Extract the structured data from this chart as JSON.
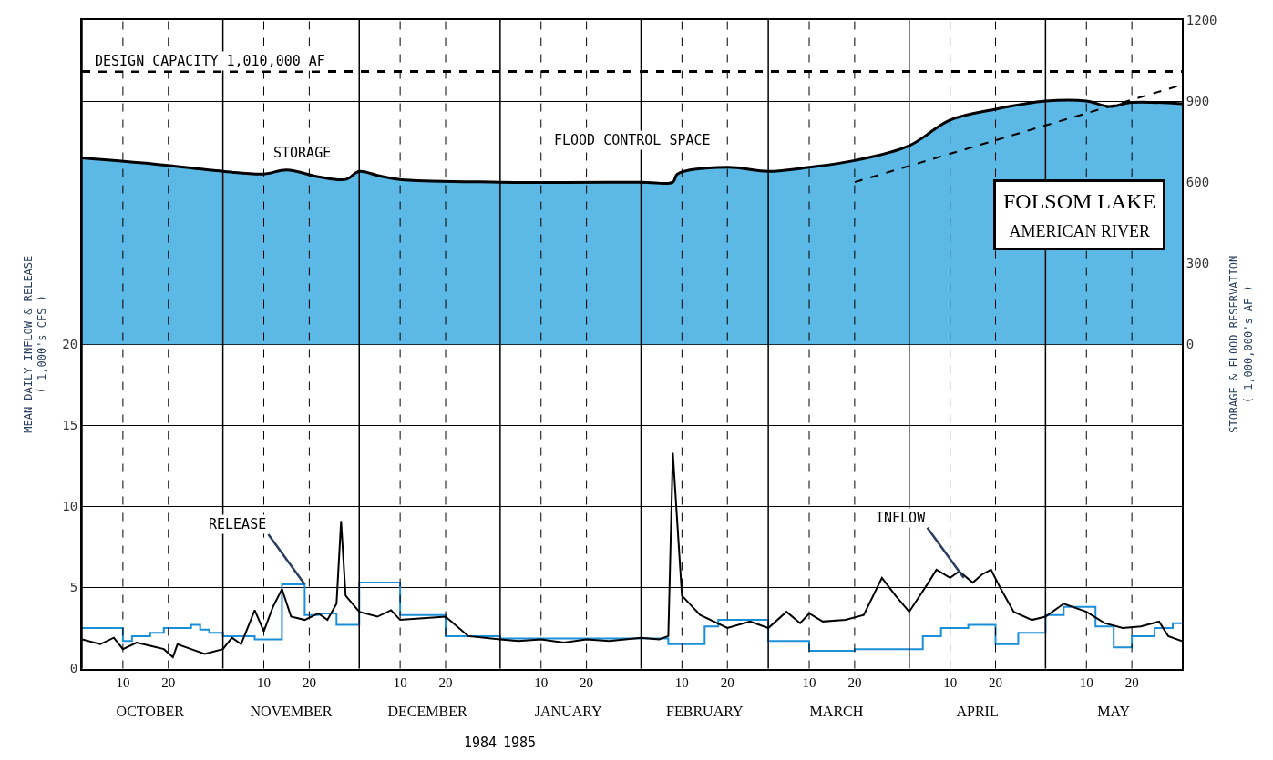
{
  "chart_data": {
    "type": "line",
    "title": "FOLSOM LAKE",
    "subtitle": "AMERICAN RIVER",
    "ylabel": "MEAN DAILY INFLOW & RELEASE\n( 1,000's CFS )",
    "y2label": "STORAGE & FLOOD RESERVATION\n( 1,000,000's AF )",
    "xlim": [
      "1984-10-01",
      "1985-05-31"
    ],
    "ylim": [
      0,
      40
    ],
    "yticks": [
      0,
      5,
      10,
      15,
      20
    ],
    "y2lim": [
      -1200,
      1200
    ],
    "y2ticks": [
      0,
      300,
      600,
      900,
      1200
    ],
    "xticks": [
      {
        "value": "1984-10-01",
        "label": null
      },
      {
        "value": "1984-10-10",
        "label": "10"
      },
      {
        "value": "1984-10-20",
        "label": "20"
      },
      {
        "value": "1984-11-01",
        "label": null
      },
      {
        "value": "1984-11-10",
        "label": "10"
      },
      {
        "value": "1984-11-20",
        "label": "20"
      },
      {
        "value": "1984-12-01",
        "label": null
      },
      {
        "value": "1984-12-10",
        "label": "10"
      },
      {
        "value": "1984-12-20",
        "label": "20"
      },
      {
        "value": "1985-01-01",
        "label": null
      },
      {
        "value": "1985-01-10",
        "label": "10"
      },
      {
        "value": "1985-01-20",
        "label": "20"
      },
      {
        "value": "1985-02-01",
        "label": null
      },
      {
        "value": "1985-02-10",
        "label": "10"
      },
      {
        "value": "1985-02-20",
        "label": "20"
      },
      {
        "value": "1985-03-01",
        "label": null
      },
      {
        "value": "1985-03-10",
        "label": "10"
      },
      {
        "value": "1985-03-20",
        "label": "20"
      },
      {
        "value": "1985-04-01",
        "label": null
      },
      {
        "value": "1985-04-10",
        "label": "10"
      },
      {
        "value": "1985-04-20",
        "label": "20"
      },
      {
        "value": "1985-05-01",
        "label": null
      },
      {
        "value": "1985-05-10",
        "label": "10"
      },
      {
        "value": "1985-05-20",
        "label": "20"
      },
      {
        "value": "1985-05-31",
        "label": null
      }
    ],
    "x2lim": [
      "1984-10-01",
      "1985-05-31"
    ],
    "x2ticks": [
      {
        "value": "1984-10-16",
        "label": "OCTOBER"
      },
      {
        "value": "1984-11-16",
        "label": "NOVEMBER"
      },
      {
        "value": "1984-12-16",
        "label": "DECEMBER"
      },
      {
        "value": "1985-01-16",
        "label": "JANUARY"
      },
      {
        "value": "1985-02-15",
        "label": "FEBRUARY"
      },
      {
        "value": "1985-03-16",
        "label": "MARCH"
      },
      {
        "value": "1985-04-16",
        "label": "APRIL"
      },
      {
        "value": "1985-05-16",
        "label": "MAY"
      }
    ],
    "grid": true,
    "series": [
      {
        "type": "area",
        "axis": "y2",
        "color": "#5cb8e4",
        "x": [
          "1984-10-01",
          "1984-10-15",
          "1984-11-01",
          "1984-11-10",
          "1984-11-15",
          "1984-11-22",
          "1984-11-28",
          "1984-12-01",
          "1984-12-05",
          "1984-12-10",
          "1985-01-01",
          "1985-02-01",
          "1985-02-08",
          "1985-02-09",
          "1985-02-20",
          "1985-03-01",
          "1985-03-10",
          "1985-03-20",
          "1985-04-01",
          "1985-04-10",
          "1985-04-20",
          "1985-05-01",
          "1985-05-10",
          "1985-05-15",
          "1985-05-20",
          "1985-05-31"
        ],
        "values": [
          690,
          670,
          640,
          630,
          645,
          620,
          610,
          640,
          625,
          610,
          600,
          600,
          600,
          630,
          655,
          640,
          655,
          680,
          735,
          830,
          870,
          900,
          900,
          880,
          895,
          890
        ]
      },
      {
        "type": "line",
        "axis": "y2",
        "line_style": "dashed",
        "color": "#000000",
        "x": [
          "1985-03-20",
          "1985-05-31"
        ],
        "values": [
          600,
          960
        ]
      },
      {
        "type": "step",
        "color": "#1b8fd8",
        "x": [
          "1984-10-01",
          "1984-10-10",
          "1984-10-12",
          "1984-10-16",
          "1984-10-19",
          "1984-10-25",
          "1984-10-27",
          "1984-10-29",
          "1984-11-01",
          "1984-11-08",
          "1984-11-14",
          "1984-11-19",
          "1984-11-22",
          "1984-11-26",
          "1984-12-01",
          "1984-12-10",
          "1984-12-20",
          "1985-01-01",
          "1985-02-07",
          "1985-02-15",
          "1985-02-18",
          "1985-03-01",
          "1985-03-10",
          "1985-03-20",
          "1985-04-04",
          "1985-04-08",
          "1985-04-14",
          "1985-04-20",
          "1985-04-25",
          "1985-05-01",
          "1985-05-05",
          "1985-05-12",
          "1985-05-16",
          "1985-05-20",
          "1985-05-25",
          "1985-05-29",
          "1985-05-31"
        ],
        "values": [
          2.5,
          1.7,
          2.0,
          2.2,
          2.5,
          2.7,
          2.4,
          2.2,
          2.0,
          1.8,
          5.2,
          3.3,
          3.4,
          2.7,
          5.3,
          3.3,
          2.0,
          1.85,
          1.5,
          2.6,
          3.0,
          1.7,
          1.1,
          1.2,
          2.0,
          2.5,
          2.7,
          1.5,
          2.2,
          3.3,
          3.8,
          2.6,
          1.3,
          2.0,
          2.5,
          2.8,
          2.8
        ]
      },
      {
        "color": "#000000",
        "x": [
          "1984-10-01",
          "1984-10-05",
          "1984-10-08",
          "1984-10-10",
          "1984-10-13",
          "1984-10-16",
          "1984-10-19",
          "1984-10-21",
          "1984-10-22",
          "1984-10-24",
          "1984-10-28",
          "1984-11-01",
          "1984-11-03",
          "1984-11-05",
          "1984-11-08",
          "1984-11-10",
          "1984-11-12",
          "1984-11-14",
          "1984-11-16",
          "1984-11-19",
          "1984-11-22",
          "1984-11-24",
          "1984-11-26",
          "1984-11-27",
          "1984-11-28",
          "1984-12-01",
          "1984-12-05",
          "1984-12-08",
          "1984-12-10",
          "1984-12-15",
          "1984-12-20",
          "1984-12-25",
          "1985-01-01",
          "1985-01-05",
          "1985-01-10",
          "1985-01-15",
          "1985-01-20",
          "1985-01-25",
          "1985-02-01",
          "1985-02-05",
          "1985-02-07",
          "1985-02-08",
          "1985-02-10",
          "1985-02-14",
          "1985-02-20",
          "1985-02-25",
          "1985-03-01",
          "1985-03-05",
          "1985-03-08",
          "1985-03-10",
          "1985-03-13",
          "1985-03-18",
          "1985-03-22",
          "1985-03-26",
          "1985-03-29",
          "1985-04-01",
          "1985-04-05",
          "1985-04-07",
          "1985-04-10",
          "1985-04-12",
          "1985-04-15",
          "1985-04-17",
          "1985-04-19",
          "1985-04-21",
          "1985-04-24",
          "1985-04-28",
          "1985-05-01",
          "1985-05-05",
          "1985-05-10",
          "1985-05-14",
          "1985-05-18",
          "1985-05-22",
          "1985-05-26",
          "1985-05-28",
          "1985-05-31"
        ],
        "values": [
          1.8,
          1.5,
          1.9,
          1.2,
          1.6,
          1.4,
          1.2,
          0.7,
          1.5,
          1.3,
          0.9,
          1.2,
          1.9,
          1.5,
          3.6,
          2.3,
          3.8,
          4.9,
          3.2,
          3.0,
          3.4,
          3.0,
          4.0,
          9.1,
          4.5,
          3.5,
          3.2,
          3.6,
          3.0,
          3.1,
          3.2,
          2.0,
          1.8,
          1.7,
          1.8,
          1.6,
          1.8,
          1.7,
          1.9,
          1.8,
          2.0,
          13.3,
          4.5,
          3.3,
          2.5,
          2.9,
          2.5,
          3.5,
          2.8,
          3.4,
          2.9,
          3.0,
          3.3,
          5.6,
          4.5,
          3.5,
          5.2,
          6.1,
          5.6,
          6.0,
          5.3,
          5.8,
          6.1,
          5.0,
          3.5,
          3.0,
          3.2,
          4.0,
          3.5,
          2.8,
          2.5,
          2.6,
          2.9,
          2.0,
          1.7
        ]
      }
    ],
    "ref_lines": [
      {
        "axis": "y2",
        "value": 1010,
        "label": "DESIGN CAPACITY 1,010,000 AF",
        "color": "#000000",
        "line_style": "dashed"
      }
    ],
    "annotations": [
      "STORAGE",
      "FLOOD CONTROL SPACE",
      "1984",
      "1985",
      {
        "text": "RELEASE",
        "x": "1984-11-19",
        "y": 5.2
      },
      {
        "text": "INFLOW",
        "x": "1985-04-13",
        "y": 5.6
      }
    ]
  }
}
